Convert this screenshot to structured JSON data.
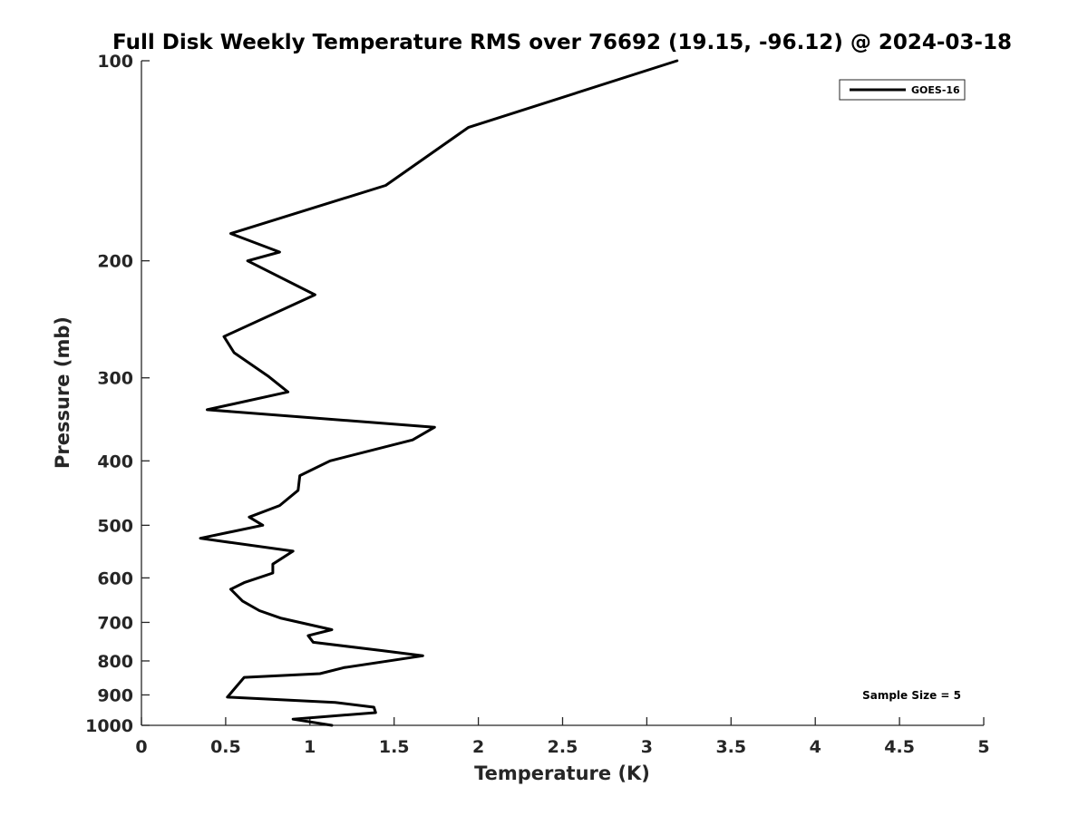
{
  "chart_data": {
    "type": "line",
    "title": "Full Disk Weekly Temperature RMS over 76692 (19.15, -96.12) @ 2024-03-18",
    "xlabel": "Temperature (K)",
    "ylabel": "Pressure (mb)",
    "xlim": [
      0,
      5
    ],
    "ylim": [
      100,
      1000
    ],
    "y_scale": "log",
    "y_reversed": true,
    "xticks": [
      0,
      0.5,
      1,
      1.5,
      2,
      2.5,
      3,
      3.5,
      4,
      4.5,
      5
    ],
    "xtick_labels": [
      "0",
      "0.5",
      "1",
      "1.5",
      "2",
      "2.5",
      "3",
      "3.5",
      "4",
      "4.5",
      "5"
    ],
    "yticks": [
      100,
      200,
      300,
      400,
      500,
      600,
      700,
      800,
      900,
      1000
    ],
    "ytick_labels": [
      "100",
      "200",
      "300",
      "400",
      "500",
      "600",
      "700",
      "800",
      "900",
      "1000"
    ],
    "grid": false,
    "legend_position": "top-right",
    "series": [
      {
        "name": "GOES-16",
        "color": "#000000",
        "points": [
          [
            3.18,
            100
          ],
          [
            1.94,
            126
          ],
          [
            1.45,
            154
          ],
          [
            0.53,
            182
          ],
          [
            0.82,
            194
          ],
          [
            0.63,
            200
          ],
          [
            1.03,
            225
          ],
          [
            0.49,
            260
          ],
          [
            0.55,
            275
          ],
          [
            0.75,
            298
          ],
          [
            0.87,
            315
          ],
          [
            0.39,
            335
          ],
          [
            1.74,
            356
          ],
          [
            1.61,
            372
          ],
          [
            1.12,
            400
          ],
          [
            0.94,
            421
          ],
          [
            0.93,
            443
          ],
          [
            0.82,
            467
          ],
          [
            0.64,
            486
          ],
          [
            0.72,
            500
          ],
          [
            0.35,
            523
          ],
          [
            0.9,
            547
          ],
          [
            0.78,
            572
          ],
          [
            0.78,
            590
          ],
          [
            0.61,
            610
          ],
          [
            0.53,
            624
          ],
          [
            0.6,
            650
          ],
          [
            0.7,
            672
          ],
          [
            0.83,
            690
          ],
          [
            1.13,
            718
          ],
          [
            0.99,
            733
          ],
          [
            1.02,
            750
          ],
          [
            1.43,
            772
          ],
          [
            1.67,
            786
          ],
          [
            1.2,
            819
          ],
          [
            1.06,
            836
          ],
          [
            0.61,
            847
          ],
          [
            0.51,
            907
          ],
          [
            1.15,
            924
          ],
          [
            1.38,
            939
          ],
          [
            1.39,
            957
          ],
          [
            0.9,
            979
          ],
          [
            1.13,
            1000
          ]
        ]
      }
    ],
    "annotation": "Sample Size = 5"
  }
}
